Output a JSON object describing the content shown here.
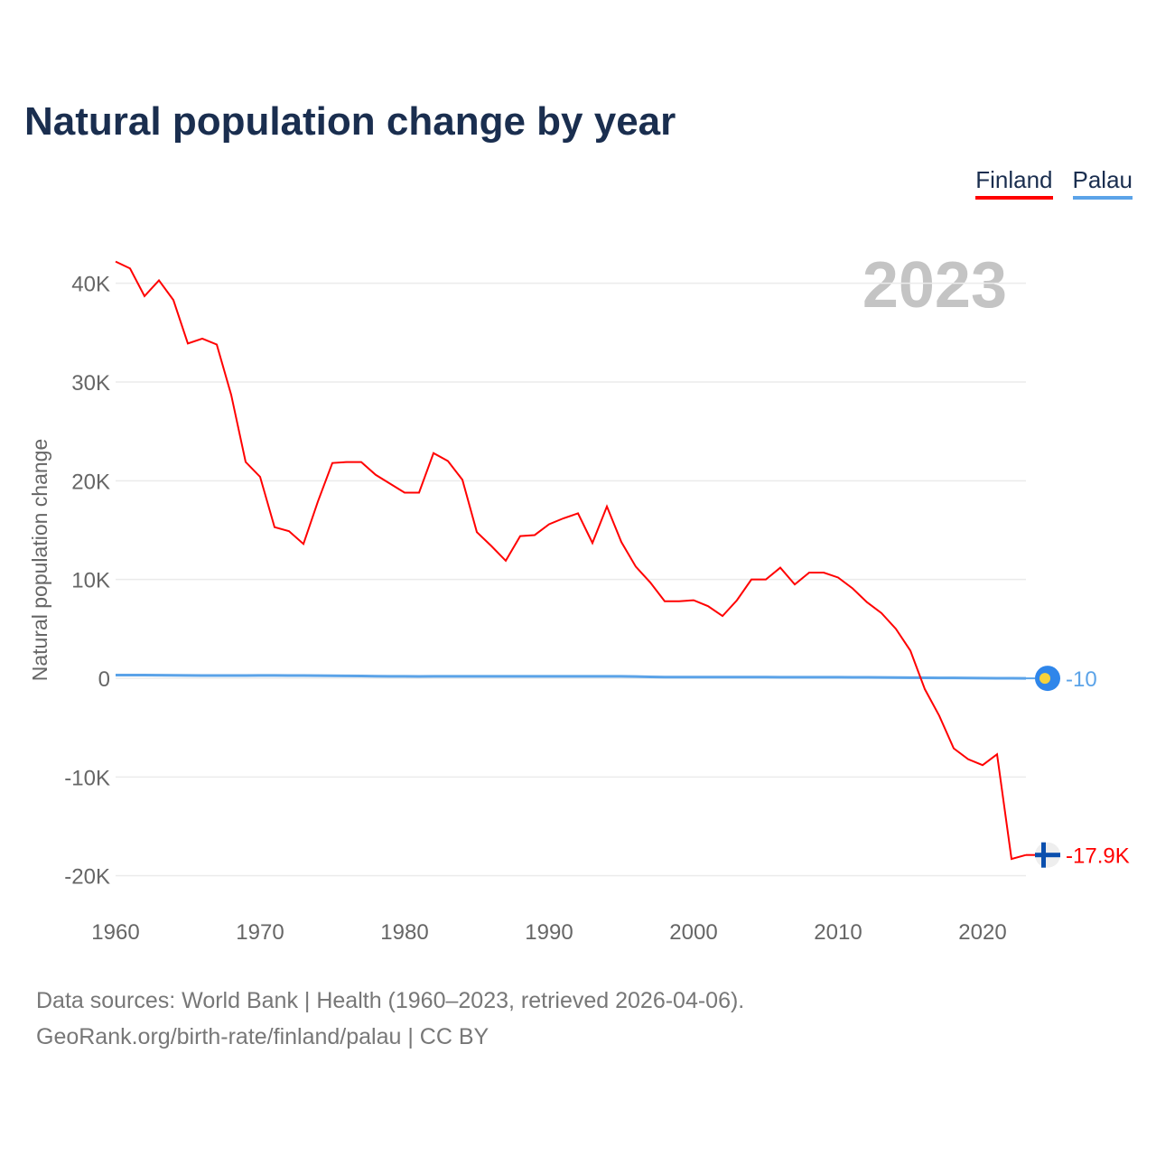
{
  "title": "Natural population change by year",
  "legend": [
    {
      "name": "Finland",
      "color": "#ff0000"
    },
    {
      "name": "Palau",
      "color": "#5ba3e8"
    }
  ],
  "source_line1": "Data sources: World Bank | Health (1960–2023, retrieved 2026-04-06).",
  "source_line2": "GeoRank.org/birth-rate/finland/palau | CC BY",
  "chart_data": {
    "type": "line",
    "title": "Natural population change by year",
    "year_watermark": "2023",
    "xlabel": "",
    "ylabel": "Natural population change",
    "xlim": [
      1960,
      2023
    ],
    "ylim": [
      -20000,
      40000
    ],
    "xticks": [
      1960,
      1970,
      1980,
      1990,
      2000,
      2010,
      2020
    ],
    "yticks": [
      {
        "v": 40000,
        "l": "40K"
      },
      {
        "v": 30000,
        "l": "30K"
      },
      {
        "v": 20000,
        "l": "20K"
      },
      {
        "v": 10000,
        "l": "10K"
      },
      {
        "v": 0,
        "l": "0"
      },
      {
        "v": -10000,
        "l": "-10K"
      },
      {
        "v": -20000,
        "l": "-20K"
      }
    ],
    "x_start": 1960,
    "series": [
      {
        "name": "Finland",
        "color": "#ff0000",
        "end_label": "-17.9K",
        "values": [
          42200,
          41500,
          38700,
          40300,
          38300,
          33900,
          34400,
          33800,
          28700,
          21900,
          20400,
          15300,
          14900,
          13600,
          17900,
          21800,
          21900,
          21900,
          20600,
          19700,
          18800,
          18800,
          22800,
          22000,
          20100,
          14800,
          13400,
          11900,
          14400,
          14500,
          15600,
          16200,
          16700,
          13700,
          17400,
          13800,
          11300,
          9700,
          7800,
          7800,
          7900,
          7300,
          6300,
          7900,
          10000,
          10000,
          11200,
          9500,
          10700,
          10700,
          10200,
          9100,
          7700,
          6600,
          5000,
          2800,
          -1100,
          -3800,
          -7100,
          -8200,
          -8800,
          -7700,
          -18300,
          -17900
        ]
      },
      {
        "name": "Palau",
        "color": "#5ba3e8",
        "end_label": "-10",
        "values": [
          320,
          320,
          320,
          310,
          300,
          290,
          280,
          280,
          280,
          280,
          290,
          290,
          280,
          270,
          260,
          250,
          240,
          230,
          210,
          200,
          190,
          180,
          190,
          190,
          190,
          190,
          190,
          190,
          190,
          190,
          190,
          190,
          190,
          190,
          200,
          190,
          170,
          140,
          120,
          110,
          110,
          110,
          110,
          110,
          110,
          110,
          100,
          100,
          100,
          100,
          100,
          90,
          90,
          80,
          70,
          60,
          50,
          40,
          30,
          20,
          10,
          0,
          -5,
          -10
        ]
      }
    ]
  }
}
